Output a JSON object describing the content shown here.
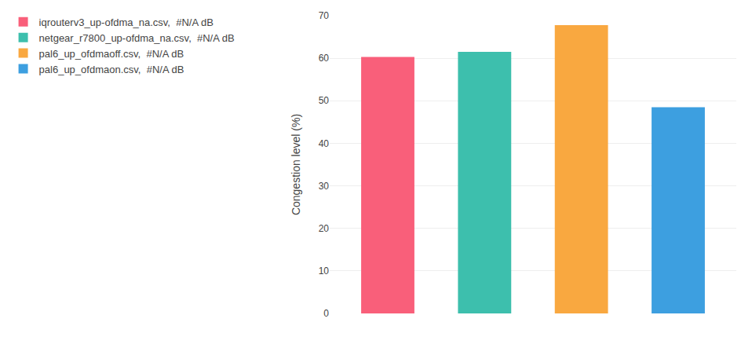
{
  "chart_data": {
    "type": "bar",
    "categories": [
      "iqrouterv3_up-ofdma_na.csv,  #N/A dB",
      "netgear_r7800_up-ofdma_na.csv,  #N/A dB",
      "pal6_up_ofdmaoff.csv,  #N/A dB",
      "pal6_up_ofdmaon.csv,  #N/A dB"
    ],
    "values": [
      60.3,
      61.5,
      67.8,
      48.5
    ],
    "colors": [
      "#F95F7A",
      "#3DBFAD",
      "#F9A840",
      "#3D9FE0"
    ],
    "ylabel": "Congestion level (%)",
    "ylim": [
      0,
      70
    ],
    "yticks": [
      0,
      10,
      20,
      30,
      40,
      50,
      60,
      70
    ],
    "grid": true,
    "tick_labels": "y",
    "legend": "upper left"
  }
}
